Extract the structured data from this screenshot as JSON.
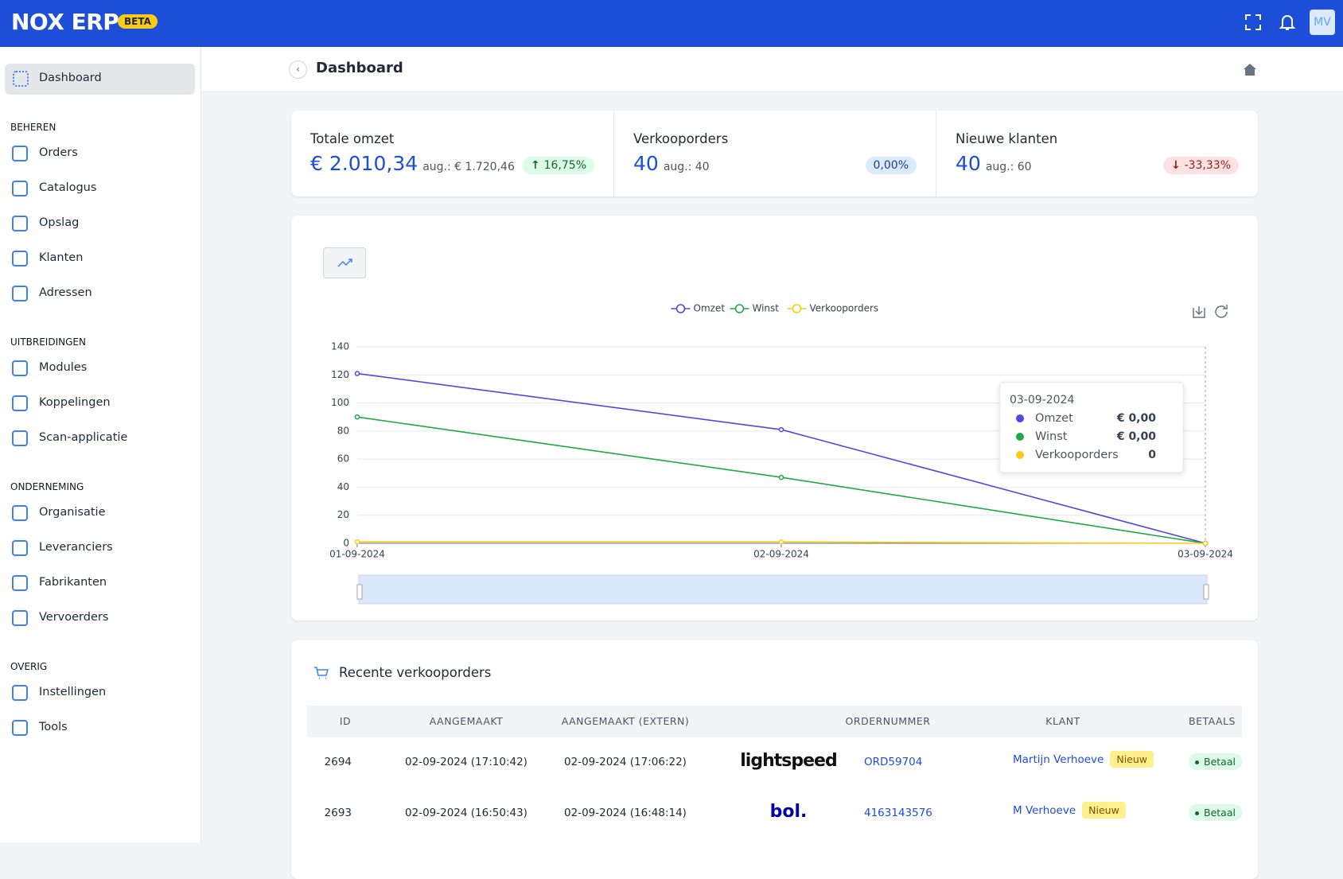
{
  "header": {
    "logo": "NOX ERP",
    "badge": "BETA",
    "avatar": "MV"
  },
  "sidebar": {
    "active": "Dashboard",
    "sections": [
      {
        "title": "BEHEREN",
        "items": [
          "Orders",
          "Catalogus",
          "Opslag",
          "Klanten",
          "Adressen"
        ]
      },
      {
        "title": "UITBREIDINGEN",
        "items": [
          "Modules",
          "Koppelingen",
          "Scan-applicatie"
        ]
      },
      {
        "title": "ONDERNEMING",
        "items": [
          "Organisatie",
          "Leveranciers",
          "Fabrikanten",
          "Vervoerders"
        ]
      },
      {
        "title": "OVERIG",
        "items": [
          "Instellingen",
          "Tools"
        ]
      }
    ]
  },
  "page": {
    "title": "Dashboard"
  },
  "stats": [
    {
      "label": "Totale omzet",
      "value": "€ 2.010,34",
      "avg": "aug.: € 1.720,46",
      "change": "16,75%"
    },
    {
      "label": "Verkooporders",
      "value": "40",
      "avg": "aug.: 40",
      "change": "0,00%"
    },
    {
      "label": "Nieuwe klanten",
      "value": "40",
      "avg": "aug.: 60",
      "change": "-33,33%"
    }
  ],
  "chart_data": {
    "type": "line",
    "categories": [
      "01-09-2024",
      "02-09-2024",
      "03-09-2024"
    ],
    "series": [
      {
        "name": "Omzet",
        "color": "#5048e5",
        "values": [
          121,
          81,
          0
        ]
      },
      {
        "name": "Winst",
        "color": "#22a745",
        "values": [
          90,
          47,
          0
        ]
      },
      {
        "name": "Verkooporders",
        "color": "#facc15",
        "values": [
          1,
          1,
          0
        ]
      }
    ],
    "ylim": [
      0,
      140
    ],
    "yticks": [
      0,
      20,
      40,
      60,
      80,
      100,
      120,
      140
    ],
    "grid": true,
    "legend": "top"
  },
  "chart_tooltip": {
    "title": "03-09-2024",
    "rows": [
      {
        "name": "Omzet",
        "value": "€ 0,00"
      },
      {
        "name": "Winst",
        "value": "€ 0,00"
      },
      {
        "name": "Verkooporders",
        "value": "0"
      }
    ]
  },
  "table": {
    "title": "Recente verkooporders",
    "columns": [
      "ID",
      "AANGEMAAKT",
      "AANGEMAAKT (EXTERN)",
      "ORDERNUMMER",
      "KLANT",
      "BETAALS"
    ],
    "rows": [
      {
        "id": "2694",
        "created": "02-09-2024 (17:10:42)",
        "external": "02-09-2024 (17:06:22)",
        "channel": "lightspeed",
        "order": "ORD59704",
        "customer": "Martijn Verhoeve",
        "badge": "Nieuw",
        "payment": "Betaal"
      },
      {
        "id": "2693",
        "created": "02-09-2024 (16:50:43)",
        "external": "02-09-2024 (16:48:14)",
        "channel": "bol.",
        "order": "4163143576",
        "customer": "M Verhoeve",
        "badge": "Nieuw",
        "payment": "Betaal"
      }
    ]
  }
}
